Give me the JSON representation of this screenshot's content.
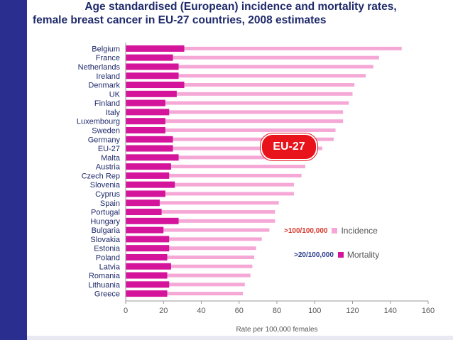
{
  "title": {
    "line1": "Age standardised (European) incidence and mortality rates,",
    "line2": "female breast cancer in EU-27 countries, 2008 estimates"
  },
  "callout": "EU-27",
  "legend": {
    "incidence_note": ">100/100,000",
    "mortality_note": ">20/100,000"
  },
  "colors": {
    "incidence": "#f5a8d6",
    "mortality": "#d4149b",
    "sidebar": "#2a2f8f",
    "callout": "#e8131b"
  },
  "chart_data": {
    "type": "bar",
    "orientation": "horizontal",
    "xlabel": "Rate per 100,000 females",
    "xlim": [
      0,
      160
    ],
    "xticks": [
      0,
      20,
      40,
      60,
      80,
      100,
      120,
      140,
      160
    ],
    "categories": [
      "Belgium",
      "France",
      "Netherlands",
      "Ireland",
      "Denmark",
      "UK",
      "Finland",
      "Italy",
      "Luxembourg",
      "Sweden",
      "Germany",
      "EU-27",
      "Malta",
      "Austria",
      "Czech Rep",
      "Slovenia",
      "Cyprus",
      "Spain",
      "Portugal",
      "Hungary",
      "Bulgaria",
      "Slovakia",
      "Estonia",
      "Poland",
      "Latvia",
      "Romania",
      "Lithuania",
      "Greece"
    ],
    "series": [
      {
        "name": "Incidence",
        "values": [
          146,
          134,
          131,
          127,
          121,
          120,
          118,
          115,
          115,
          111,
          110,
          104,
          98,
          95,
          93,
          89,
          89,
          81,
          79,
          79,
          76,
          72,
          69,
          68,
          67,
          66,
          63,
          62
        ]
      },
      {
        "name": "Mortality",
        "values": [
          31,
          25,
          28,
          28,
          31,
          27,
          21,
          23,
          21,
          21,
          25,
          25,
          28,
          24,
          23,
          26,
          21,
          18,
          19,
          28,
          20,
          23,
          23,
          22,
          24,
          22,
          23,
          22
        ]
      }
    ],
    "legend_position": "bottom-right",
    "grid": false
  }
}
